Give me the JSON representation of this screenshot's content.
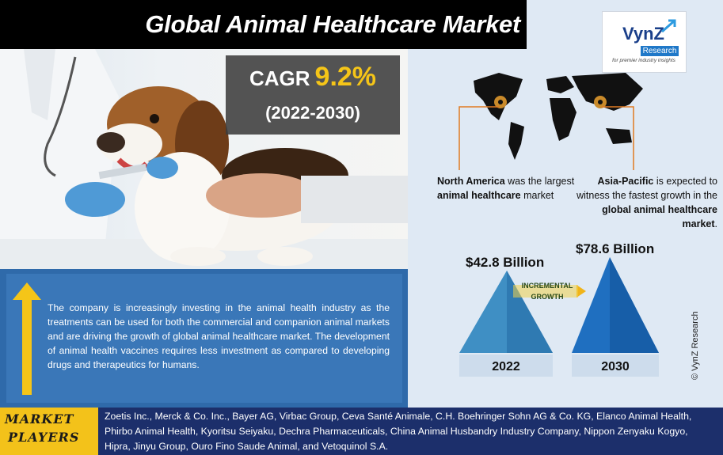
{
  "title": "Global Animal Healthcare Market",
  "cagr": {
    "label": "CAGR",
    "value": "9.2%",
    "period": "(2022-2030)"
  },
  "logo": {
    "name": "VynZ",
    "sub": "Research",
    "tagline": "for premier industry insights"
  },
  "regions": {
    "north_america": {
      "prefix": "North America",
      "mid": " was the largest ",
      "bold2": "animal healthcare",
      "suffix": " market"
    },
    "asia_pacific": {
      "prefix": "Asia-Pacific",
      "mid": " is expected to witness the fastest growth in the ",
      "bold2": "global animal healthcare market",
      "suffix": "."
    }
  },
  "market_values": {
    "value_2022": "$42.8 Billion",
    "value_2030": "$78.6  Billion",
    "year_2022": "2022",
    "year_2030": "2030",
    "incremental_line1": "INCREMENTAL",
    "incremental_line2": "GROWTH"
  },
  "copyright": "© VynZ Research",
  "description": "The company is increasingly investing in the animal health industry as the treatments can be used for both the commercial and companion animal markets and are driving the growth of global animal healthcare market. The development of animal health vaccines requires less investment as compared to developing drugs and therapeutics for humans.",
  "market_players": {
    "label_line1": "MARKET",
    "label_line2": "PLAYERS",
    "list": "Zoetis Inc., Merck & Co. Inc., Bayer AG, Virbac Group, Ceva Santé Animale, C.H. Boehringer Sohn AG & Co. KG, Elanco Animal Health, Phirbo Animal Health, Kyoritsu Seiyaku, Dechra Pharmaceuticals, China Animal Husbandry Industry Company, Nippon Zenyaku Kogyo, Hipra, Jinyu Group, Ouro Fino Saude Animal, and Vetoquinol S.A."
  },
  "colors": {
    "title_bg": "#000000",
    "accent_yellow": "#f5c518",
    "panel_blue": "#3a77b8",
    "bottom_navy": "#1c2f6b",
    "pyramid_2022": "#3f8fc4",
    "pyramid_2030": "#1f6fc0"
  },
  "icons": [
    "location-pin-icon",
    "up-arrow-icon",
    "world-map-icon"
  ]
}
